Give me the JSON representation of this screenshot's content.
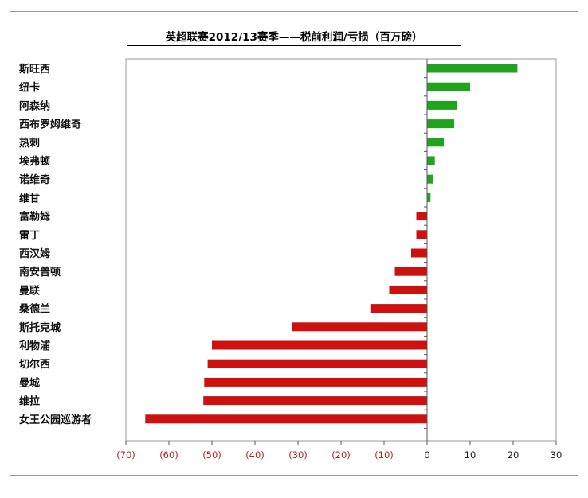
{
  "chart_data": {
    "type": "bar",
    "orientation": "horizontal",
    "title": "英超联赛2012/13赛季——税前利润/亏损（百万磅）",
    "categories": [
      "斯旺西",
      "纽卡",
      "阿森纳",
      "西布罗姆维奇",
      "热刺",
      "埃弗顿",
      "诺维奇",
      "维甘",
      "富勒姆",
      "雷丁",
      "西汉姆",
      "南安普顿",
      "曼联",
      "桑德兰",
      "斯托克城",
      "利物浦",
      "切尔西",
      "曼城",
      "维拉",
      "女王公园巡游者"
    ],
    "values": [
      21,
      10,
      7,
      6.3,
      3.9,
      1.8,
      1.3,
      0.8,
      -2.5,
      -2.5,
      -3.7,
      -7.5,
      -8.8,
      -13,
      -31.3,
      -50,
      -51,
      -51.8,
      -52,
      -65.5
    ],
    "xlim": [
      -70,
      30
    ],
    "xticks": [
      -70,
      -60,
      -50,
      -40,
      -30,
      -20,
      -10,
      0,
      10,
      20,
      30
    ],
    "xtick_labels": [
      "(70)",
      "(60)",
      "(50)",
      "(40)",
      "(30)",
      "(20)",
      "(10)",
      "0",
      "10",
      "20",
      "30"
    ],
    "grid": false,
    "colors": {
      "positive": "#22a31f",
      "negative": "#cc1111",
      "negative_tick": "#b22222",
      "positive_tick": "#222222"
    }
  }
}
